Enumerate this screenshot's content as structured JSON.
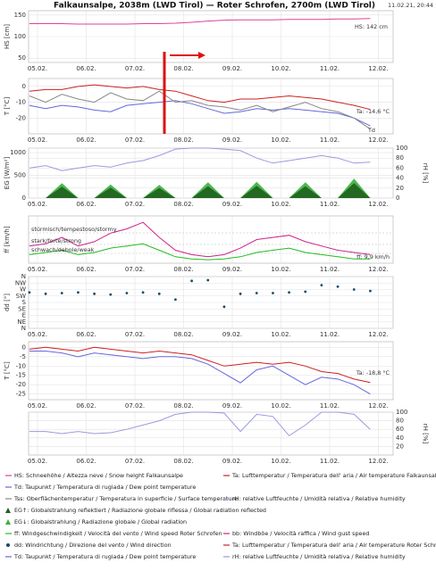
{
  "title": "Falkaunsalpe, 2038m (LWD Tirol) — Roter Schrofen, 2700m (LWD Tirol)",
  "timestamp": "11.02.21, 20:44",
  "x_ticks": [
    "05.02.",
    "06.02.",
    "07.02.",
    "08.02.",
    "09.02.",
    "10.02.",
    "11.02.",
    "12.02."
  ],
  "chart_data": [
    {
      "type": "line",
      "ylabel": "HS [cm]",
      "ylim": [
        40,
        160
      ],
      "yticks": [
        50,
        100,
        150
      ],
      "grid": true,
      "series": [
        {
          "name": "HS: Schneehöhe / Altezza neve / Snow height  Falkaunsalpe",
          "color": "#e0409a",
          "values": [
            130,
            130,
            130,
            129,
            129,
            129,
            129,
            130,
            130,
            131,
            133,
            136,
            138,
            139,
            139,
            139,
            140,
            140,
            140,
            141,
            141,
            142
          ]
        }
      ],
      "annotations": [
        {
          "text": "HS: 142 cm",
          "color": "#e0409a"
        }
      ]
    },
    {
      "type": "line",
      "ylabel": "T [°C]",
      "ylim": [
        -30,
        5
      ],
      "yticks": [
        -20,
        -10,
        0
      ],
      "grid": true,
      "series": [
        {
          "name": "Ta: Lufttemperatur / Temperatura dell' aria / Air temperature  Falkaunsalpe",
          "color": "#cc2020",
          "values": [
            -3,
            -2,
            -2,
            0,
            1,
            0,
            -1,
            0,
            -2,
            -3,
            -6,
            -9,
            -10,
            -8,
            -8,
            -7,
            -6,
            -7,
            -8,
            -10,
            -12,
            -14.6
          ]
        },
        {
          "name": "Td: Taupunkt / Temperatura di rugiada / Dew point temperature",
          "color": "#6666dd",
          "values": [
            -12,
            -14,
            -12,
            -13,
            -15,
            -16,
            -12,
            -11,
            -10,
            -9,
            -11,
            -14,
            -17,
            -16,
            -14,
            -15,
            -14,
            -15,
            -16,
            -17,
            -20,
            -25
          ]
        },
        {
          "name": "Tss: Oberflächentemperatur / Temperatura in superficie / Surface temperature",
          "color": "#888888",
          "values": [
            -6,
            -10,
            -5,
            -8,
            -10,
            -4,
            -8,
            -9,
            -3,
            -10,
            -9,
            -12,
            -13,
            -15,
            -12,
            -16,
            -13,
            -10,
            -14,
            -16,
            -20,
            -27
          ]
        }
      ],
      "annotations": [
        {
          "text": "Ta: -14,6 °C",
          "color": "#cc2020"
        },
        {
          "text": "Td",
          "color": "#6666dd"
        }
      ]
    },
    {
      "type": "line",
      "ylabel": "EG [W/m²]",
      "ylim": [
        0,
        1100
      ],
      "yticks": [
        0,
        500,
        1000
      ],
      "grid": true,
      "y2label": "rH [%]",
      "y2lim": [
        0,
        100
      ],
      "y2ticks": [
        0,
        20,
        40,
        60,
        80,
        100
      ],
      "series": [
        {
          "name": "EG↓: Globalstrahlung / Radiazione globale / Global radiation",
          "color": "#3ab03a",
          "style": "area",
          "values": [
            0,
            0,
            330,
            0,
            0,
            300,
            0,
            0,
            290,
            0,
            0,
            350,
            0,
            0,
            360,
            0,
            0,
            350,
            0,
            0,
            430,
            0
          ]
        },
        {
          "name": "EG↑: Globalstrahlung reflektiert / Radiazione globale riflessa / Global radiation reflected",
          "color": "#1f5f1f",
          "style": "area",
          "values": [
            0,
            0,
            250,
            0,
            0,
            230,
            0,
            0,
            220,
            0,
            0,
            260,
            0,
            0,
            270,
            0,
            0,
            260,
            0,
            0,
            330,
            0
          ]
        },
        {
          "name": "rH: relative Luftfeuchte / Umidità relativa / Relative humidity",
          "color": "#9a9ae0",
          "axis": "y2",
          "values": [
            60,
            65,
            55,
            60,
            65,
            62,
            70,
            75,
            85,
            98,
            100,
            100,
            98,
            95,
            80,
            70,
            75,
            80,
            85,
            80,
            70,
            72
          ]
        }
      ]
    },
    {
      "type": "line",
      "ylabel": "ff [km/h]",
      "ylim": [
        0,
        110
      ],
      "grid": true,
      "series": [
        {
          "name": "ff: Windgeschwindigkeit / Velocità del vento / Wind speed  Roter Schrofen",
          "color": "#22bb22",
          "values": [
            20,
            25,
            30,
            20,
            25,
            35,
            40,
            45,
            30,
            15,
            10,
            8,
            10,
            15,
            25,
            30,
            35,
            25,
            20,
            15,
            10,
            9.9
          ]
        },
        {
          "name": "bb: Windböe / Velocità raffica / Wind gust speed",
          "color": "#cc2288",
          "values": [
            40,
            45,
            60,
            40,
            50,
            70,
            80,
            95,
            60,
            30,
            20,
            15,
            20,
            35,
            55,
            60,
            65,
            50,
            40,
            30,
            25,
            20
          ]
        }
      ],
      "annotations": [
        {
          "text": "stürmisch/tempestoso/stormy",
          "color": "#555555"
        },
        {
          "text": "stark/forte/strong",
          "color": "#555555"
        },
        {
          "text": "schwach/debole/weak",
          "color": "#555555"
        },
        {
          "text": "ff: 9,9 km/h",
          "color": "#22bb22"
        }
      ]
    },
    {
      "type": "scatter",
      "ylabel": "dd [°]",
      "ylim": [
        0,
        360
      ],
      "grid": true,
      "yticks": [
        {
          "value": 360,
          "label": "N"
        },
        {
          "value": 315,
          "label": "NW"
        },
        {
          "value": 270,
          "label": "W"
        },
        {
          "value": 225,
          "label": "SW"
        },
        {
          "value": 180,
          "label": "S"
        },
        {
          "value": 135,
          "label": "SE"
        },
        {
          "value": 90,
          "label": "E"
        },
        {
          "value": 45,
          "label": "NE"
        },
        {
          "value": 0,
          "label": "N"
        }
      ],
      "series": [
        {
          "name": "dd: Windrichtung / Direzione del vento / Wind direction",
          "color": "#1a4a6a",
          "values": [
            250,
            240,
            245,
            250,
            240,
            235,
            245,
            250,
            240,
            200,
            330,
            335,
            150,
            240,
            245,
            245,
            250,
            255,
            300,
            290,
            270,
            260
          ]
        }
      ]
    },
    {
      "type": "line",
      "ylabel": "T [°C]",
      "ylim": [
        -28,
        3
      ],
      "yticks": [
        -25,
        -20,
        -15,
        -10,
        -5,
        0
      ],
      "grid": true,
      "series": [
        {
          "name": "Ta: Lufttemperatur / Temperatura dell' aria / Air temperature  Roter Schrofen",
          "color": "#cc2020",
          "values": [
            -1,
            0,
            -1,
            -2,
            0,
            -1,
            -2,
            -3,
            -2,
            -3,
            -4,
            -7,
            -10,
            -9,
            -8,
            -9,
            -8,
            -10,
            -13,
            -14,
            -17,
            -18.8
          ]
        },
        {
          "name": "Td: Taupunkt / Temperatura di rugiada / Dew point temperature",
          "color": "#6666dd",
          "values": [
            -2,
            -2,
            -3,
            -5,
            -3,
            -4,
            -5,
            -6,
            -5,
            -5,
            -6,
            -9,
            -14,
            -19,
            -12,
            -10,
            -15,
            -20,
            -16,
            -17,
            -20,
            -25
          ]
        }
      ],
      "annotations": [
        {
          "text": "Ta: -18,8 °C",
          "color": "#cc2020"
        }
      ]
    },
    {
      "type": "line",
      "grid": true,
      "y2label": "rH [%]",
      "y2lim": [
        0,
        100
      ],
      "y2ticks": [
        20,
        40,
        60,
        80,
        100
      ],
      "series": [
        {
          "name": "rH: relative Luftfeuchte / Umidità relativa / Relative humidity",
          "color": "#9a9ae0",
          "axis": "y2",
          "values": [
            55,
            55,
            50,
            55,
            50,
            52,
            60,
            70,
            80,
            95,
            100,
            100,
            98,
            55,
            95,
            90,
            45,
            70,
            100,
            100,
            95,
            60
          ]
        }
      ]
    }
  ]
}
